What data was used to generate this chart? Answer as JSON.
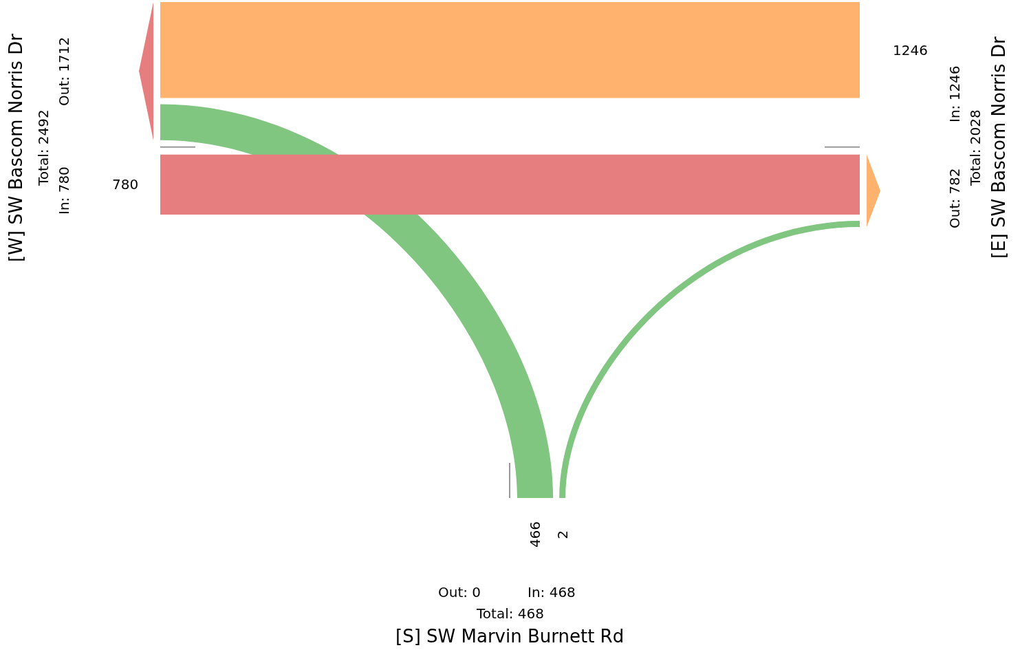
{
  "chart_data": {
    "type": "other",
    "categories": [
      "[W] SW Bascom Norris Dr",
      "[E] SW Bascom Norris Dr",
      "[S] SW Marvin Burnett Rd"
    ],
    "series": [
      {
        "colors": [
          null,
          "#ffb26e",
          "#80c680"
        ],
        "values": [
          null,
          1246,
          466
        ]
      },
      {
        "colors": [
          "#e67d7e",
          null,
          "#80c680"
        ],
        "values": [
          780,
          null,
          2
        ]
      }
    ],
    "data_labels": true,
    "annotations": [
      "In: 780",
      "Out: 1712",
      "Total: 2492",
      "In: 1246",
      "Out: 782",
      "Total: 2028",
      "In: 468",
      "Out: 0",
      "Total: 468"
    ]
  }
}
